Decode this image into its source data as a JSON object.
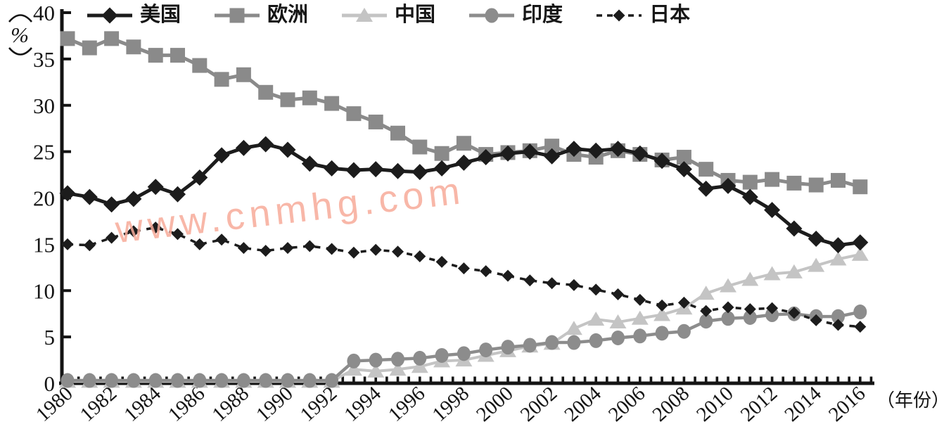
{
  "watermark": {
    "text": "www.cnmhg.com",
    "color": "#f7ab9a"
  },
  "chart_data": {
    "type": "line",
    "title": "",
    "ylabel": "%",
    "xlabel": "（年份）",
    "ylim": [
      0,
      40
    ],
    "ytick_step": 5,
    "y_ticks": [
      0,
      5,
      10,
      15,
      20,
      25,
      30,
      35,
      40
    ],
    "grid": false,
    "legend_position": "top",
    "x": [
      1980,
      1981,
      1982,
      1983,
      1984,
      1985,
      1986,
      1987,
      1988,
      1989,
      1990,
      1991,
      1992,
      1993,
      1994,
      1995,
      1996,
      1997,
      1998,
      1999,
      2000,
      2001,
      2002,
      2003,
      2004,
      2005,
      2006,
      2007,
      2008,
      2009,
      2010,
      2011,
      2012,
      2013,
      2014,
      2015,
      2016
    ],
    "x_tick_labels": [
      1980,
      1982,
      1984,
      1986,
      1988,
      1990,
      1992,
      1994,
      1996,
      1998,
      2000,
      2002,
      2004,
      2006,
      2008,
      2010,
      2012,
      2014,
      2016
    ],
    "series": [
      {
        "name": "美国",
        "marker": "diamond",
        "line": "solid",
        "color": "#1c1c1c",
        "values": [
          20.5,
          20.1,
          19.3,
          19.9,
          21.2,
          20.4,
          22.2,
          24.6,
          25.4,
          25.8,
          25.2,
          23.7,
          23.2,
          23.0,
          23.1,
          22.9,
          22.8,
          23.2,
          23.8,
          24.4,
          24.8,
          25.0,
          24.5,
          25.3,
          25.1,
          25.3,
          24.8,
          24.0,
          23.1,
          21.0,
          21.3,
          20.1,
          18.7,
          16.7,
          15.6,
          14.9,
          15.2
        ]
      },
      {
        "name": "欧洲",
        "marker": "square",
        "line": "solid",
        "color": "#8a8a8a",
        "values": [
          37.2,
          36.2,
          37.2,
          36.3,
          35.4,
          35.4,
          34.3,
          32.8,
          33.3,
          31.4,
          30.6,
          30.8,
          30.2,
          29.1,
          28.2,
          27.0,
          25.5,
          24.8,
          25.9,
          24.7,
          24.9,
          25.1,
          25.6,
          24.7,
          24.4,
          25.1,
          24.7,
          24.1,
          24.4,
          23.1,
          21.9,
          21.7,
          22.0,
          21.6,
          21.4,
          21.9,
          21.2
        ]
      },
      {
        "name": "中国",
        "marker": "triangle",
        "line": "solid",
        "color": "#c4c4c4",
        "values": [
          0.2,
          0.2,
          0.2,
          0.2,
          0.2,
          0.2,
          0.2,
          0.2,
          0.2,
          0.2,
          0.2,
          0.2,
          0.2,
          1.5,
          1.3,
          1.5,
          1.8,
          2.4,
          2.5,
          3.0,
          3.5,
          4.0,
          4.3,
          5.9,
          6.9,
          6.6,
          7.0,
          7.4,
          8.1,
          9.7,
          10.5,
          11.2,
          11.8,
          12.0,
          12.7,
          13.4,
          13.9
        ]
      },
      {
        "name": "印度",
        "marker": "circle",
        "line": "solid",
        "color": "#8c8c8c",
        "values": [
          0.3,
          0.3,
          0.3,
          0.3,
          0.3,
          0.3,
          0.3,
          0.3,
          0.3,
          0.3,
          0.3,
          0.3,
          0.3,
          2.4,
          2.5,
          2.6,
          2.7,
          3.0,
          3.2,
          3.6,
          3.9,
          4.1,
          4.4,
          4.4,
          4.6,
          4.9,
          5.1,
          5.4,
          5.6,
          6.7,
          7.0,
          7.1,
          7.4,
          7.5,
          7.2,
          7.2,
          7.7
        ]
      },
      {
        "name": "日本",
        "marker": "diamond-small",
        "line": "dashed",
        "color": "#1c1c1c",
        "values": [
          15.0,
          14.9,
          15.7,
          16.4,
          16.8,
          16.1,
          15.0,
          15.5,
          14.6,
          14.3,
          14.6,
          14.8,
          14.5,
          14.1,
          14.4,
          14.2,
          13.7,
          13.1,
          12.4,
          12.1,
          11.6,
          11.1,
          10.8,
          10.6,
          10.1,
          9.6,
          9.0,
          8.4,
          8.7,
          7.8,
          8.2,
          8.0,
          8.1,
          7.6,
          6.8,
          6.3,
          6.1
        ]
      }
    ]
  }
}
